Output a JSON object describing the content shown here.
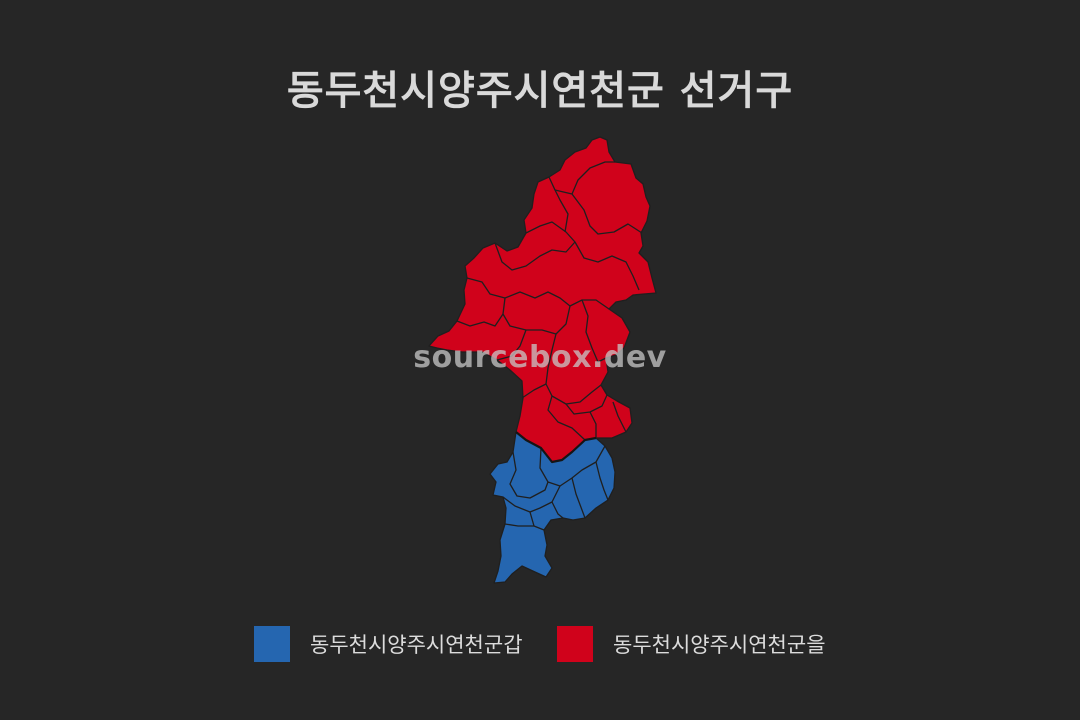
{
  "title": "동두천시양주시연천군 선거구",
  "watermark": "sourcebox.dev",
  "colors": {
    "background": "#262626",
    "district_gap": "#2566b0",
    "district_eul": "#d0021b",
    "border": "#1f1f1f"
  },
  "legend": [
    {
      "label": "동두천시양주시연천군갑",
      "color": "#2566b0"
    },
    {
      "label": "동두천시양주시연천군을",
      "color": "#d0021b"
    }
  ],
  "districts": [
    {
      "name": "동두천시양주시연천군을",
      "color": "#d0021b"
    },
    {
      "name": "동두천시양주시연천군갑",
      "color": "#2566b0"
    }
  ]
}
